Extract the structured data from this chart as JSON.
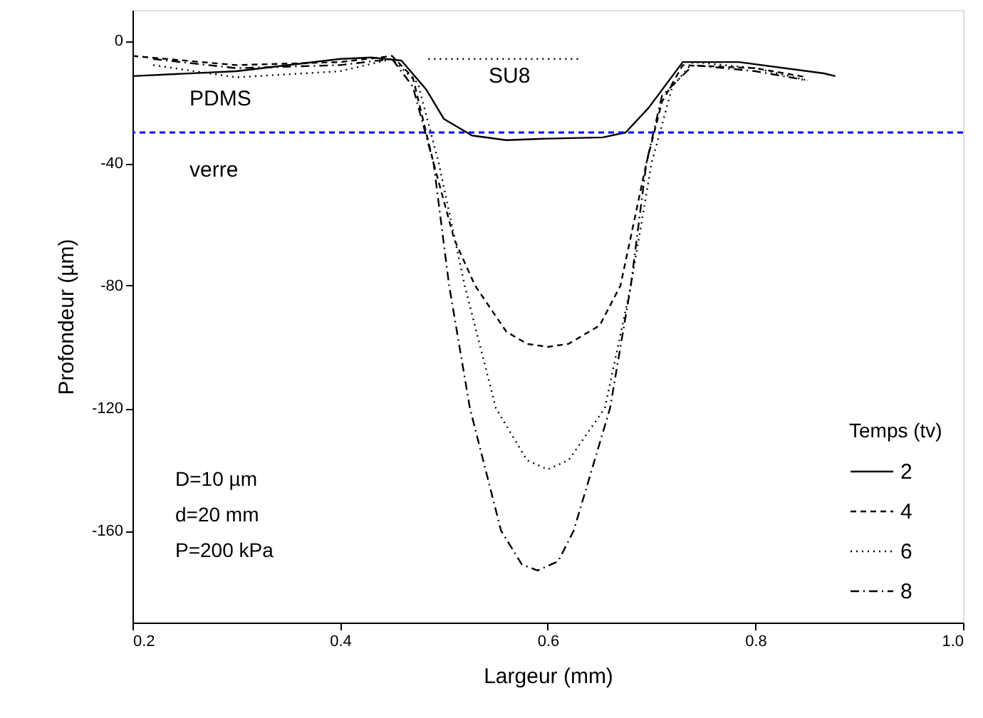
{
  "chart_data": {
    "type": "line",
    "xlabel": "Largeur (mm)",
    "ylabel": "Profondeur (µm)",
    "legend_title": "Temps (tv)",
    "xlim": [
      0.2,
      1.0
    ],
    "xticks": [
      0.2,
      0.4,
      0.6,
      0.8,
      {
        "value": 1.0,
        "label": "1.0"
      }
    ],
    "ylim": [
      -190,
      10
    ],
    "yticks": [
      0,
      -40,
      -80,
      -120,
      -160
    ],
    "grid": false,
    "legend": "bottom right",
    "marker": "none",
    "series": [
      {
        "name": "2",
        "color": "#000000",
        "line_style": "solid",
        "x": [
          0.2,
          0.3,
          0.4,
          0.43,
          0.459,
          0.483,
          0.5,
          0.527,
          0.56,
          0.6,
          0.653,
          0.675,
          0.697,
          0.73,
          0.784,
          0.866,
          0.877
        ],
        "values": [
          -11.6,
          -10,
          -6,
          -5.5,
          -6.5,
          -16,
          -25.6,
          -31,
          -32.5,
          -32,
          -31.6,
          -30,
          -22,
          -7,
          -7,
          -10.7,
          -11.6
        ]
      },
      {
        "name": "4",
        "color": "#000000",
        "line_style": "dashed",
        "x": [
          0.2,
          0.3,
          0.4,
          0.45,
          0.47,
          0.49,
          0.51,
          0.53,
          0.56,
          0.58,
          0.6,
          0.62,
          0.65,
          0.67,
          0.695,
          0.71,
          0.73,
          0.8,
          0.85
        ],
        "values": [
          -5,
          -8,
          -7,
          -5,
          -12,
          -40,
          -65,
          -80,
          -95,
          -99,
          -100,
          -99,
          -93,
          -80,
          -40,
          -20,
          -8,
          -9,
          -12
        ]
      },
      {
        "name": "6",
        "color": "#000000",
        "line_style": "dotted",
        "x": [
          0.22,
          0.3,
          0.4,
          0.45,
          0.475,
          0.495,
          0.52,
          0.55,
          0.58,
          0.6,
          0.62,
          0.655,
          0.68,
          0.7,
          0.72,
          0.74,
          0.8,
          0.85
        ],
        "values": [
          -8,
          -12,
          -10,
          -6,
          -14,
          -40,
          -80,
          -120,
          -137,
          -140,
          -137,
          -120,
          -80,
          -40,
          -15,
          -7,
          -9,
          -13
        ]
      },
      {
        "name": "8",
        "color": "#000000",
        "line_style": "dashdot",
        "x": [
          0.22,
          0.3,
          0.4,
          0.45,
          0.47,
          0.49,
          0.505,
          0.525,
          0.555,
          0.575,
          0.59,
          0.61,
          0.625,
          0.66,
          0.68,
          0.695,
          0.71,
          0.74,
          0.8,
          0.85
        ],
        "values": [
          -6,
          -9,
          -8,
          -6,
          -15,
          -40,
          -80,
          -120,
          -160,
          -171,
          -173,
          -170,
          -160,
          -120,
          -80,
          -40,
          -18,
          -8,
          -10,
          -13
        ]
      },
      {
        "color": "#000000",
        "line_style": "dotted",
        "x": [
          0.485,
          0.63
        ],
        "values": [
          -6,
          -6
        ]
      }
    ],
    "ref_lines": [
      {
        "axis": "y",
        "value": -30,
        "color": "#0000ff",
        "line_style": "dashed"
      }
    ],
    "annotations": [
      "PDMS",
      "SU8",
      "verre",
      "D=10 µm",
      "d=20 mm",
      "P=200 kPa"
    ]
  }
}
